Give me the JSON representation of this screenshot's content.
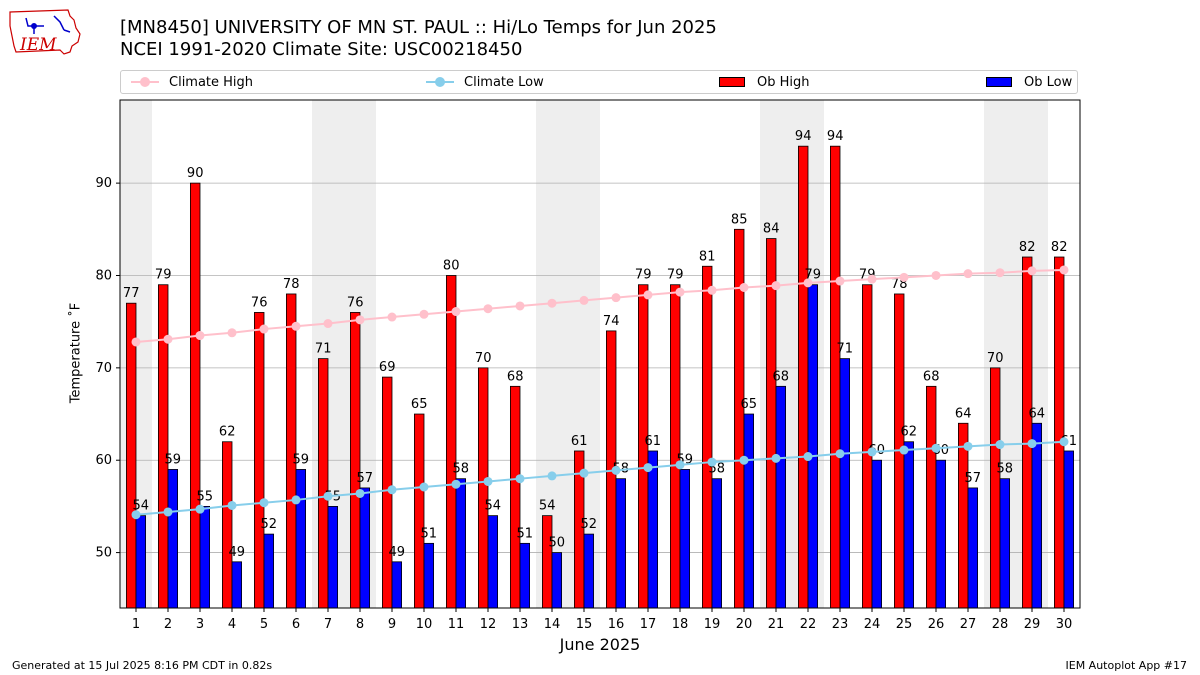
{
  "title": "[MN8450] UNIVERSITY OF MN ST. PAUL :: Hi/Lo Temps for Jun 2025",
  "subtitle": "NCEI 1991-2020 Climate Site: USC00218450",
  "logo_text": "IEM",
  "footer_left": "Generated at 15 Jul 2025 8:16 PM CDT in 0.82s",
  "footer_right": "IEM Autoplot App #17",
  "colors": {
    "ob_high": "#ff0000",
    "ob_low": "#0000ff",
    "climate_high": "#ffc0cb",
    "climate_low": "#87ceeb",
    "weekend_band": "#eeeeee",
    "grid": "#b0b0b0"
  },
  "legend": [
    {
      "label": "Climate High",
      "kind": "line",
      "color": "#ffc0cb"
    },
    {
      "label": "Climate Low",
      "kind": "line",
      "color": "#87ceeb"
    },
    {
      "label": "Ob High",
      "kind": "box",
      "color": "#ff0000"
    },
    {
      "label": "Ob Low",
      "kind": "box",
      "color": "#0000ff"
    }
  ],
  "chart_data": {
    "type": "bar",
    "xlabel": "June 2025",
    "ylabel": "Temperature ˚F",
    "ylim": [
      44,
      99
    ],
    "yticks": [
      50,
      60,
      70,
      80,
      90
    ],
    "grid": "horizontal",
    "legend_position": "top",
    "categories": [
      "1",
      "2",
      "3",
      "4",
      "5",
      "6",
      "7",
      "8",
      "9",
      "10",
      "11",
      "12",
      "13",
      "14",
      "15",
      "16",
      "17",
      "18",
      "19",
      "20",
      "21",
      "22",
      "23",
      "24",
      "25",
      "26",
      "27",
      "28",
      "29",
      "30"
    ],
    "shaded_days": [
      "1",
      "7",
      "8",
      "14",
      "15",
      "21",
      "22",
      "28",
      "29"
    ],
    "series": [
      {
        "name": "Ob High",
        "type": "bar",
        "values": [
          77,
          79,
          90,
          62,
          76,
          78,
          71,
          76,
          69,
          65,
          80,
          70,
          68,
          54,
          61,
          74,
          79,
          79,
          81,
          85,
          84,
          94,
          94,
          79,
          78,
          68,
          64,
          70,
          82,
          82
        ]
      },
      {
        "name": "Ob Low",
        "type": "bar",
        "values": [
          54,
          59,
          55,
          49,
          52,
          59,
          55,
          57,
          49,
          51,
          58,
          54,
          51,
          50,
          52,
          58,
          61,
          59,
          58,
          65,
          68,
          79,
          71,
          60,
          62,
          60,
          57,
          58,
          64,
          61
        ]
      },
      {
        "name": "Climate High",
        "type": "line",
        "values": [
          72.8,
          73.1,
          73.5,
          73.8,
          74.2,
          74.5,
          74.8,
          75.2,
          75.5,
          75.8,
          76.1,
          76.4,
          76.7,
          77.0,
          77.3,
          77.6,
          77.9,
          78.2,
          78.4,
          78.7,
          78.9,
          79.2,
          79.4,
          79.6,
          79.8,
          80.0,
          80.2,
          80.3,
          80.5,
          80.6
        ]
      },
      {
        "name": "Climate Low",
        "type": "line",
        "values": [
          54.1,
          54.4,
          54.7,
          55.1,
          55.4,
          55.7,
          56.1,
          56.4,
          56.8,
          57.1,
          57.4,
          57.7,
          58.0,
          58.3,
          58.6,
          58.9,
          59.2,
          59.5,
          59.8,
          60.0,
          60.2,
          60.4,
          60.7,
          60.9,
          61.1,
          61.3,
          61.5,
          61.7,
          61.8,
          62.0
        ]
      }
    ]
  }
}
